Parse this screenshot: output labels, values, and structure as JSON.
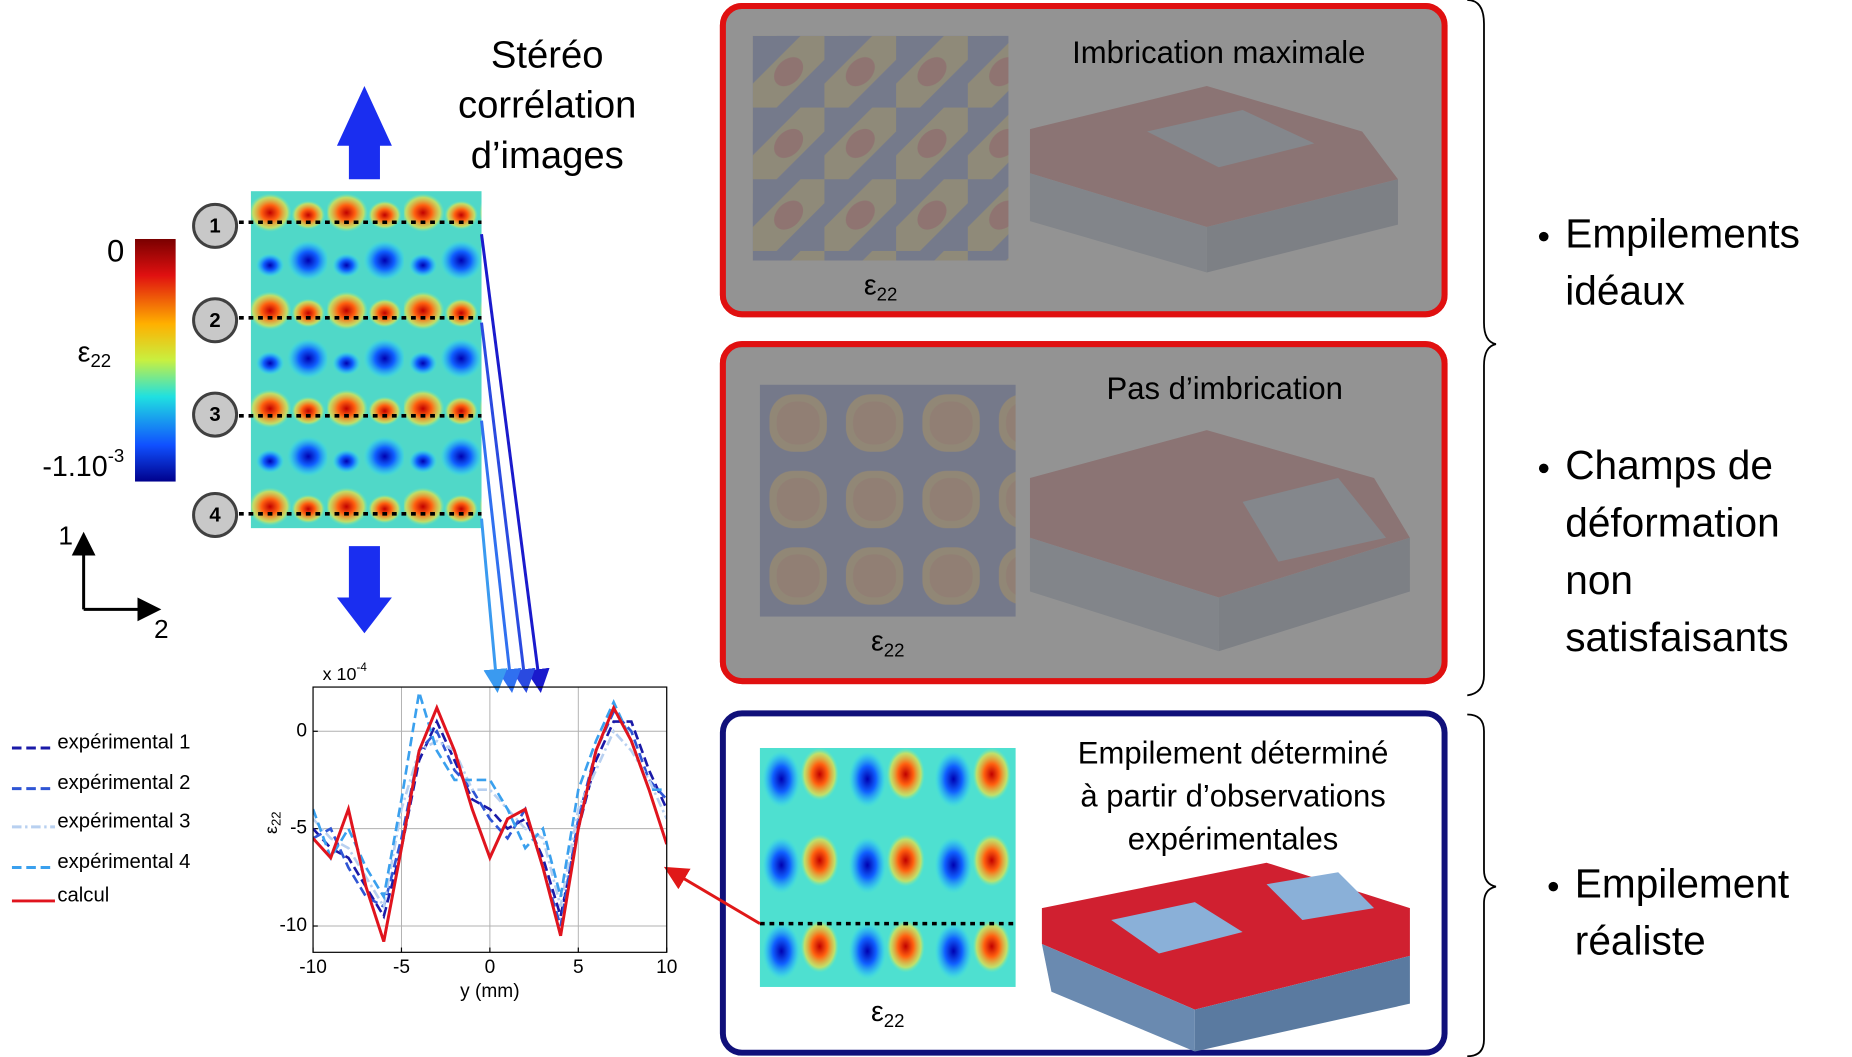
{
  "chart_data": {
    "type": "line",
    "x": [
      -10,
      -9,
      -8,
      -7,
      -6,
      -5,
      -4,
      -3,
      -2,
      -1,
      0,
      1,
      2,
      3,
      4,
      5,
      6,
      7,
      8,
      9,
      10
    ],
    "series": [
      {
        "name": "expérimental  1",
        "color": "#1a1aa8",
        "dash": "dashed",
        "values": [
          -5,
          -6,
          -6.5,
          -8,
          -9.5,
          -6,
          -1.5,
          0.5,
          -1.5,
          -3.5,
          -4,
          -5,
          -4.5,
          -6.5,
          -9.5,
          -5,
          -1.5,
          0.5,
          0.5,
          -2,
          -4
        ]
      },
      {
        "name": "expérimental  2",
        "color": "#2f55d4",
        "dash": "dashed",
        "values": [
          -5.5,
          -5,
          -7,
          -8.5,
          -9,
          -5.5,
          -1,
          0,
          -2,
          -3,
          -4.5,
          -5.5,
          -4,
          -7,
          -10,
          -4.5,
          -1,
          1,
          0,
          -2.5,
          -3.5
        ]
      },
      {
        "name": "expérimental  3",
        "color": "#b8d0f0",
        "dash": "dashdot",
        "values": [
          -4.5,
          -5.5,
          -6,
          -7.5,
          -9,
          -4,
          -1,
          -0.5,
          -1,
          -3,
          -3,
          -4,
          -5,
          -5.5,
          -9,
          -4,
          -2,
          0,
          -1,
          -2.5,
          -4.5
        ]
      },
      {
        "name": "expérimental  4",
        "color": "#3aa0ee",
        "dash": "dashed",
        "values": [
          -4,
          -6.5,
          -5,
          -7,
          -8.5,
          -3.5,
          2,
          -1,
          -2.5,
          -2.5,
          -2.5,
          -4,
          -6,
          -5,
          -8.5,
          -3,
          -0.5,
          1.5,
          -0.5,
          -3,
          -3
        ]
      },
      {
        "name": "calcul",
        "color": "#e0141e",
        "dash": "solid",
        "values": [
          -5.5,
          -6.5,
          -4,
          -8,
          -10.8,
          -6,
          -1,
          1.2,
          -1,
          -4,
          -6.5,
          -4.5,
          -4,
          -7,
          -10.5,
          -5,
          -1,
          1.2,
          -0.5,
          -3,
          -5.8
        ]
      }
    ],
    "xlim": [
      -10,
      10
    ],
    "ylim": [
      -11.35,
      2.27
    ],
    "xticks": [
      -10,
      -5,
      0,
      5,
      10
    ],
    "yticks": [
      -10,
      -5,
      0
    ],
    "xlabel": "y (mm)",
    "ylabel": "ε",
    "ylabel_sub": "22",
    "multiplier": "x 10",
    "multiplier_exp": "-4",
    "grid": true,
    "legend": "left"
  },
  "header": {
    "lines": [
      "Stéréo",
      "corrélation",
      "d’images"
    ]
  },
  "markers": [
    "1",
    "2",
    "3",
    "4"
  ],
  "colorbar": {
    "max": "0",
    "min": "-1.10",
    "min_exp": "-3",
    "symbol": "ε",
    "sub": "22"
  },
  "axes_icon": {
    "v": "1",
    "h": "2"
  },
  "panels": [
    {
      "title": [
        "Imbrication maximale"
      ],
      "symbol": "ε",
      "sub": "22"
    },
    {
      "title": [
        "Pas d’imbrication"
      ],
      "symbol": "ε",
      "sub": "22"
    },
    {
      "title": [
        "Empilement déterminé",
        "à partir d’observations",
        "expérimentales"
      ],
      "symbol": "ε",
      "sub": "22"
    }
  ],
  "bullets": [
    {
      "lines": [
        "Empilements",
        "idéaux"
      ]
    },
    {
      "lines": [
        "Champs de",
        "déformation",
        "non",
        "satisfaisants"
      ]
    },
    {
      "lines": [
        "Empilement",
        "réaliste"
      ]
    }
  ]
}
